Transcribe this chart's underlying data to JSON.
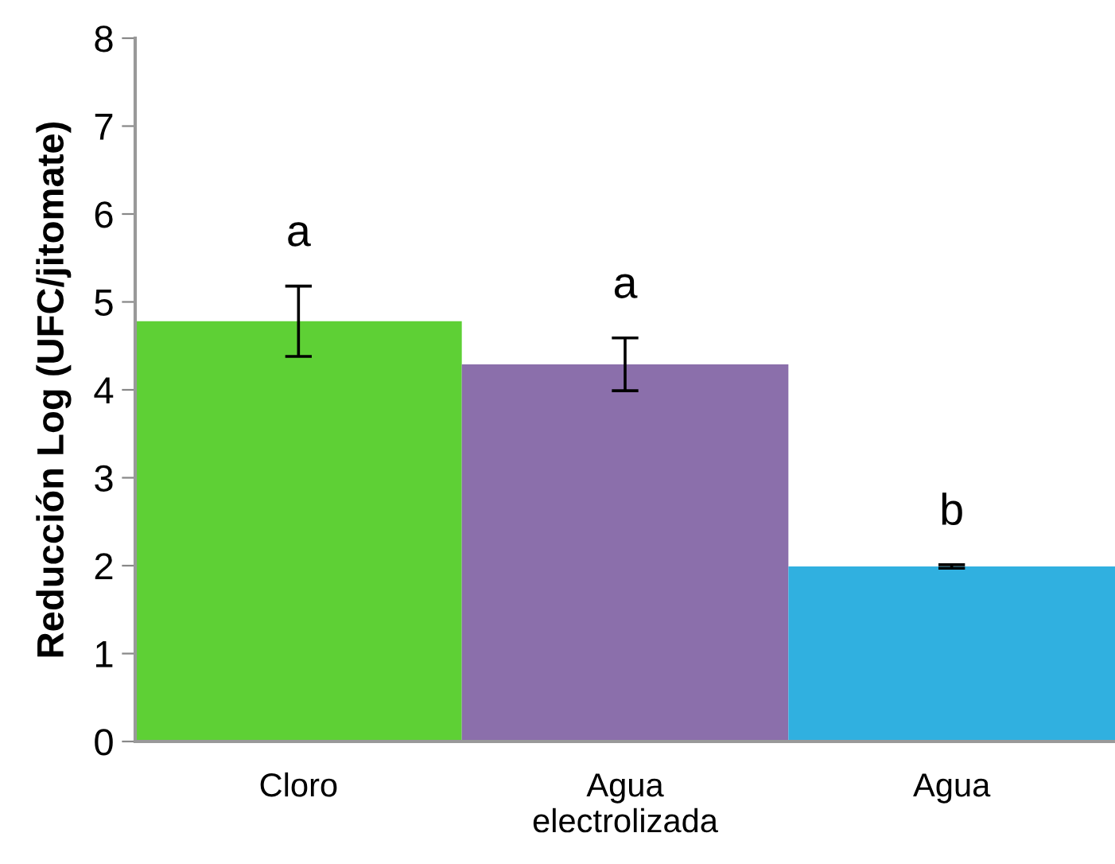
{
  "chart_data": {
    "type": "bar",
    "ylabel": "Reducción Log (UFC/jitomate)",
    "categories": [
      "Cloro",
      "Agua\nelectrolizada",
      "Agua"
    ],
    "values": [
      4.78,
      4.29,
      1.99
    ],
    "colors": [
      "#5ed035",
      "#8b6fab",
      "#30b0e0"
    ],
    "errors": [
      0.4,
      0.3,
      0.02
    ],
    "ylim": [
      0,
      8
    ],
    "yticks": [
      0,
      1,
      2,
      3,
      4,
      5,
      6,
      7,
      8
    ],
    "grid": false,
    "legend": false,
    "annotations": [
      "a",
      "a",
      "b"
    ]
  }
}
